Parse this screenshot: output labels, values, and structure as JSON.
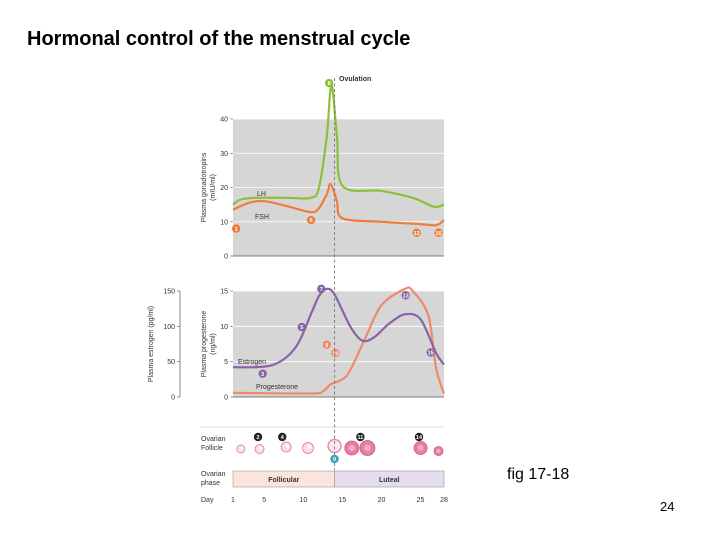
{
  "slide": {
    "title": "Hormonal control of the menstrual cycle",
    "caption": "fig 17-18",
    "page_number": "24"
  },
  "colors": {
    "lh": "#8dbf3a",
    "fsh": "#ee7d3b",
    "estrogen": "#8a62a6",
    "progesterone": "#ee8a6a",
    "follicular": "#fbe4dc",
    "luteal": "#e6dcef",
    "panel": "#d6d6d6",
    "ovulation_line": "#777777"
  },
  "chart_data": [
    {
      "type": "line",
      "panel": "gonadotropins",
      "title": "Ovulation",
      "ylabel": "Plasma gonadotropins (mIU/ml)",
      "ylim": [
        0,
        40
      ],
      "y_ticks": [
        "0",
        "10",
        "20",
        "30",
        "40"
      ],
      "grid": true,
      "series": [
        {
          "name": "LH",
          "points": [
            [
              1,
              15
            ],
            [
              2,
              16.5
            ],
            [
              4,
              17
            ],
            [
              8,
              17
            ],
            [
              11,
              17
            ],
            [
              12,
              20
            ],
            [
              13,
              35
            ],
            [
              13.6,
              50
            ],
            [
              14.3,
              35
            ],
            [
              15,
              20.5
            ],
            [
              20,
              19
            ],
            [
              24,
              17
            ],
            [
              26,
              15
            ],
            [
              27,
              14.3
            ],
            [
              28,
              15
            ]
          ]
        },
        {
          "name": "FSH",
          "points": [
            [
              1,
              13.5
            ],
            [
              3,
              15.5
            ],
            [
              5,
              16
            ],
            [
              8,
              14.5
            ],
            [
              11,
              12.8
            ],
            [
              12,
              14
            ],
            [
              13,
              18
            ],
            [
              13.5,
              21
            ],
            [
              14.3,
              16
            ],
            [
              15,
              11
            ],
            [
              20,
              10
            ],
            [
              25,
              9.3
            ],
            [
              27,
              9
            ],
            [
              28,
              10.5
            ]
          ]
        }
      ],
      "annotations": [
        {
          "label": "1",
          "x": 1.4,
          "y": 8,
          "color": "fsh"
        },
        {
          "label": "6",
          "x": 11,
          "y": 10.5,
          "color": "fsh"
        },
        {
          "label": "8",
          "x": 13.3,
          "y": 50.5,
          "color": "lh"
        },
        {
          "label": "12",
          "x": 24.5,
          "y": 6.8,
          "color": "fsh"
        },
        {
          "label": "16",
          "x": 27.3,
          "y": 6.8,
          "color": "fsh"
        }
      ]
    },
    {
      "type": "line",
      "panel": "steroids",
      "ylabel_right": "Plasma progesterone (ng/ml)",
      "ylim_right": [
        0,
        15
      ],
      "y_ticks_right": [
        "0",
        "5",
        "10",
        "15"
      ],
      "ylabel_left": "Plasma estrogen (pg/ml)",
      "ylim_left": [
        0,
        150
      ],
      "y_ticks_left": [
        "0",
        "50",
        "100",
        "150"
      ],
      "grid": true,
      "series": [
        {
          "name": "Estrogen",
          "axis": "left",
          "points": [
            [
              1,
              42
            ],
            [
              6,
              45
            ],
            [
              9,
              70
            ],
            [
              11,
              118
            ],
            [
              12,
              143
            ],
            [
              13,
              153
            ],
            [
              14,
              145
            ],
            [
              16,
              100
            ],
            [
              17.5,
              80
            ],
            [
              19,
              84
            ],
            [
              21,
              104
            ],
            [
              23,
              117
            ],
            [
              25,
              110
            ],
            [
              27,
              62
            ],
            [
              28,
              46
            ]
          ]
        },
        {
          "name": "Progesterone",
          "axis": "right",
          "points": [
            [
              1,
              0.6
            ],
            [
              11,
              0.5
            ],
            [
              12.5,
              0.8
            ],
            [
              13.5,
              1.8
            ],
            [
              15,
              2.5
            ],
            [
              16,
              3.8
            ],
            [
              18,
              8.5
            ],
            [
              20,
              13
            ],
            [
              23,
              15.3
            ],
            [
              24,
              15
            ],
            [
              26,
              11.5
            ],
            [
              27,
              4
            ],
            [
              28,
              0.5
            ]
          ]
        }
      ],
      "annotations": [
        {
          "label": "3",
          "x": 4.8,
          "y": 3.3,
          "color": "estrogen"
        },
        {
          "label": "5",
          "x": 9.8,
          "y": 9.9,
          "color": "estrogen"
        },
        {
          "label": "7",
          "x": 12.3,
          "y": 15.3,
          "color": "estrogen"
        },
        {
          "label": "9",
          "x": 13.0,
          "y": 7.4,
          "color": "progesterone"
        },
        {
          "label": "10",
          "x": 14.1,
          "y": 6.2,
          "color": "progesterone"
        },
        {
          "label": "13",
          "x": 23.1,
          "y": 14.4,
          "color": "estrogen"
        },
        {
          "label": "15",
          "x": 26.3,
          "y": 6.3,
          "color": "estrogen"
        }
      ]
    },
    {
      "type": "table",
      "panel": "ovary",
      "row_labels": [
        "Ovarian Follicle",
        "Ovarian phase",
        "Day"
      ],
      "phases": [
        {
          "name": "Follicular",
          "from": 1,
          "to": 14
        },
        {
          "name": "Luteal",
          "from": 14,
          "to": 28
        }
      ],
      "days": [
        1,
        5,
        10,
        15,
        20,
        25,
        28
      ],
      "follicle_markers": [
        {
          "label": "2",
          "x": 4.2
        },
        {
          "label": "4",
          "x": 7.3
        },
        {
          "label": "11",
          "x": 17.3
        },
        {
          "label": "14",
          "x": 24.8
        }
      ],
      "ovulation_marker": "9"
    }
  ]
}
